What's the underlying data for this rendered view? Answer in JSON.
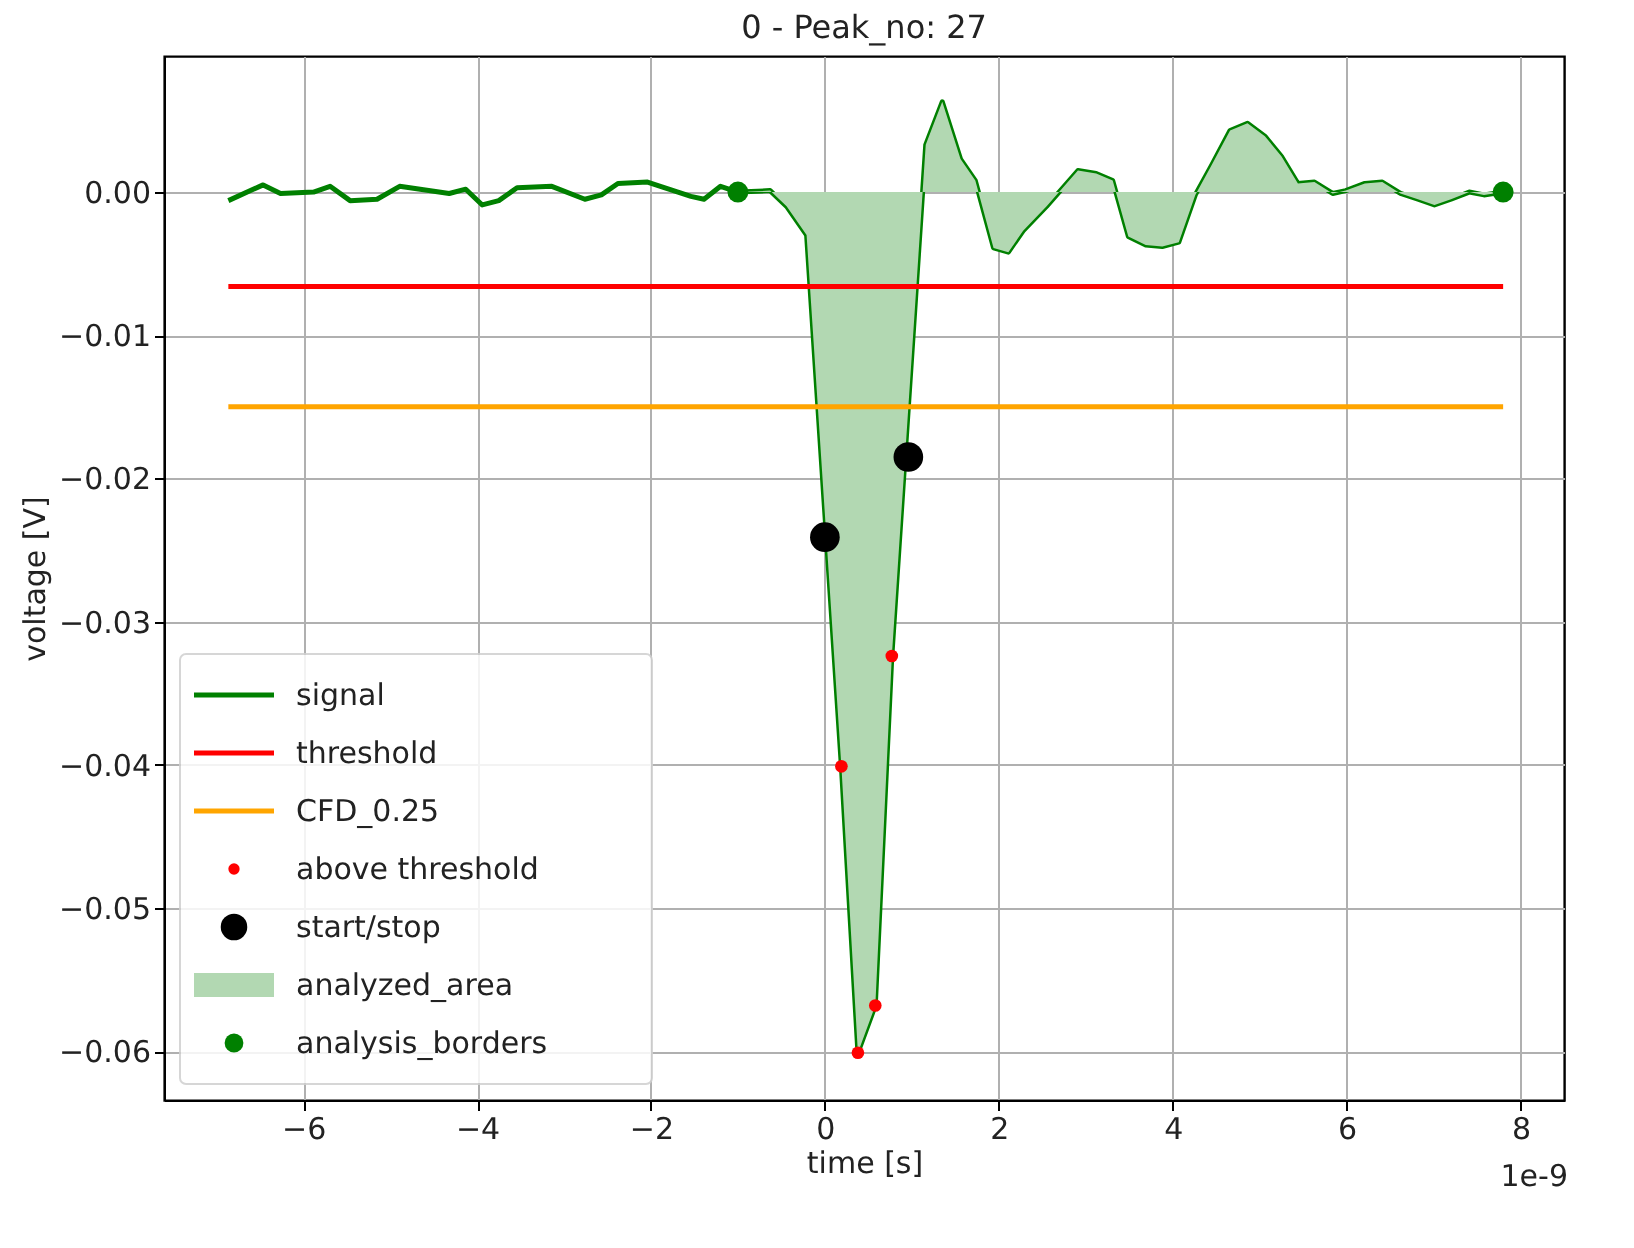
{
  "chart_data": {
    "type": "line",
    "title": "0 - Peak_no: 27",
    "xlabel": "time [s]",
    "ylabel": "voltage [V]",
    "xlim": [
      -7.6,
      8.5
    ],
    "ylim": [
      -0.0634,
      0.0095
    ],
    "xticks": [
      {
        "value": -6,
        "label": "−6"
      },
      {
        "value": -4,
        "label": "−4"
      },
      {
        "value": -2,
        "label": "−2"
      },
      0,
      2,
      4,
      6,
      8
    ],
    "yticks": [
      {
        "value": 0,
        "label": "0.00"
      },
      {
        "value": -0.01,
        "label": "−0.01"
      },
      {
        "value": -0.02,
        "label": "−0.02"
      },
      {
        "value": -0.03,
        "label": "−0.03"
      },
      {
        "value": -0.04,
        "label": "−0.04"
      },
      {
        "value": -0.05,
        "label": "−0.05"
      },
      {
        "value": -0.06,
        "label": "−0.06"
      }
    ],
    "grid": true,
    "legend": "bottom left",
    "annotations": [
      "1e-9"
    ],
    "series": [
      {
        "name": "signal",
        "type": "line",
        "color": "#008000",
        "line_style": "solid",
        "x": [
          -6.86,
          -6.46,
          -6.26,
          -5.88,
          -5.69,
          -5.46,
          -5.15,
          -4.89,
          -4.32,
          -4.13,
          -3.94,
          -3.75,
          -3.54,
          -3.14,
          -2.76,
          -2.57,
          -2.38,
          -2.04,
          -1.54,
          -1.39,
          -1.2,
          -1.0,
          -0.63,
          -0.44,
          -0.21,
          0.19,
          0.38,
          0.58,
          0.77,
          1.16,
          1.35,
          1.56,
          1.73,
          1.94,
          2.11,
          2.28,
          2.55,
          2.91,
          3.12,
          3.31,
          3.49,
          3.69,
          3.88,
          4.07,
          4.26,
          4.45,
          4.66,
          4.86,
          5.06,
          5.25,
          5.44,
          5.63,
          5.84,
          5.99,
          6.21,
          6.41,
          6.62,
          6.82,
          7.01,
          7.2,
          7.41,
          7.58,
          7.8
        ],
        "values": [
          -0.0006,
          0.0005,
          -0.0001,
          0.0,
          0.0004,
          -0.0006,
          -0.0005,
          0.0004,
          -0.0001,
          0.0002,
          -0.0009,
          -0.0006,
          0.0003,
          0.0004,
          -0.0005,
          -0.0002,
          0.0006,
          0.0007,
          -0.0003,
          -0.0005,
          0.0004,
          0.0,
          0.0001,
          -0.001,
          -0.003,
          -0.0401,
          -0.0601,
          -0.0568,
          -0.0324,
          0.0033,
          0.0063,
          0.0023,
          0.0008,
          -0.0039,
          -0.0042,
          -0.0027,
          -0.001,
          0.0015,
          0.0013,
          0.0008,
          -0.0031,
          -0.0037,
          -0.0038,
          -0.0035,
          -0.0002,
          0.0019,
          0.0043,
          0.0048,
          0.0039,
          0.0025,
          0.0006,
          0.0007,
          -0.0001,
          0.0001,
          0.0006,
          0.0007,
          -0.0001,
          -0.0005,
          -0.0009,
          -0.0005,
          0.0,
          -0.0002,
          0.0
        ]
      },
      {
        "name": "threshold",
        "type": "line",
        "color": "#ff0000",
        "line_style": "solid",
        "x": [
          -6.86,
          7.8
        ],
        "values": [
          -0.0066,
          -0.0066
        ]
      },
      {
        "name": "CFD_0.25",
        "type": "line",
        "color": "#ffa500",
        "line_style": "solid",
        "x": [
          -6.86,
          7.8
        ],
        "values": [
          -0.015,
          -0.015
        ]
      },
      {
        "name": "above threshold",
        "type": "scatter",
        "marker": "circle",
        "color": "#ff0000",
        "x": [
          0.19,
          0.38,
          0.58,
          0.77
        ],
        "values": [
          -0.0401,
          -0.0601,
          -0.0568,
          -0.0324
        ]
      },
      {
        "name": "start/stop",
        "type": "scatter",
        "marker": "circle",
        "color": "#000000",
        "x": [
          0.0,
          0.96
        ],
        "values": [
          -0.0241,
          -0.0185
        ]
      },
      {
        "name": "analyzed_area",
        "type": "area",
        "color": "#b2d8b2",
        "x": [
          -1.0,
          -0.63,
          -0.44,
          -0.21,
          0.19,
          0.38,
          0.58,
          0.77,
          1.16,
          1.35,
          1.56,
          1.73,
          1.94,
          2.11,
          2.28,
          2.55,
          2.91,
          3.12,
          3.31,
          3.49,
          3.69,
          3.88,
          4.07,
          4.26,
          4.45,
          4.66,
          4.86,
          5.06,
          5.25,
          5.44,
          5.63,
          5.84,
          5.99,
          6.21,
          6.41,
          6.62,
          6.82,
          7.01,
          7.2,
          7.41,
          7.58,
          7.8
        ],
        "values": [
          0.0,
          0.0001,
          -0.001,
          -0.003,
          -0.0401,
          -0.0601,
          -0.0568,
          -0.0324,
          0.0033,
          0.0063,
          0.0023,
          0.0008,
          -0.0039,
          -0.0042,
          -0.0027,
          -0.001,
          0.0015,
          0.0013,
          0.0008,
          -0.0031,
          -0.0037,
          -0.0038,
          -0.0035,
          -0.0002,
          0.0019,
          0.0043,
          0.0048,
          0.0039,
          0.0025,
          0.0006,
          0.0007,
          -0.0001,
          0.0001,
          0.0006,
          0.0007,
          -0.0001,
          -0.0005,
          -0.0009,
          -0.0005,
          0.0,
          -0.0002,
          0.0
        ]
      },
      {
        "name": "analysis_borders",
        "type": "scatter",
        "marker": "circle",
        "color": "#008000",
        "x": [
          -1.0,
          7.8
        ],
        "values": [
          0.0,
          0.0
        ]
      }
    ]
  }
}
